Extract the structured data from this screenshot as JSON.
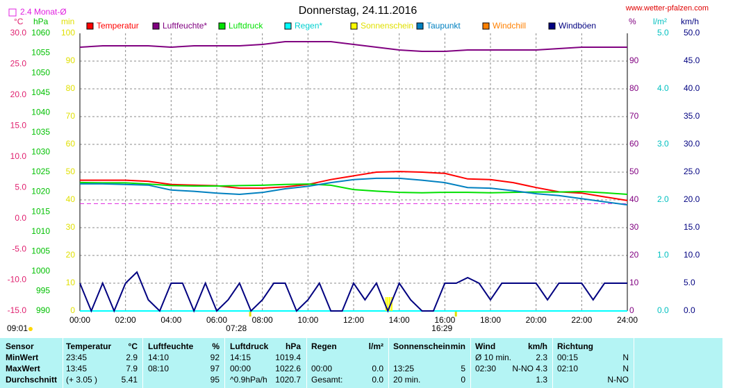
{
  "chart_data": {
    "type": "line",
    "title": "Donnerstag, 24.11.2016",
    "source": "www.wetter-pfalzen.com",
    "month_avg": {
      "label": "2.4 Monat-Ø",
      "value": 2.4,
      "color": "#e020e0"
    },
    "day_length": "09:01",
    "sunrise": {
      "value": 7.4667,
      "label": "07:28"
    },
    "sunset": {
      "value": 16.4833,
      "label": "16:29"
    },
    "grid": true,
    "xlim": [
      0,
      24
    ],
    "xticks": [
      {
        "value": 0,
        "label": "00:00"
      },
      {
        "value": 2,
        "label": "02:00"
      },
      {
        "value": 4,
        "label": "04:00"
      },
      {
        "value": 6,
        "label": "06:00"
      },
      {
        "value": 8,
        "label": "08:00"
      },
      {
        "value": 10,
        "label": "10:00"
      },
      {
        "value": 12,
        "label": "12:00"
      },
      {
        "value": 14,
        "label": "14:00"
      },
      {
        "value": 16,
        "label": "16:00"
      },
      {
        "value": 18,
        "label": "18:00"
      },
      {
        "value": 20,
        "label": "20:00"
      },
      {
        "value": 22,
        "label": "22:00"
      },
      {
        "value": 24,
        "label": "24:00"
      }
    ],
    "axes": [
      {
        "label": "°C",
        "color": "#e0206f",
        "lim": [
          -15,
          30
        ],
        "ticks": [
          {
            "value": -15,
            "label": "-15.0"
          },
          {
            "value": -10,
            "label": "-10.0"
          },
          {
            "value": -5,
            "label": "-5.0"
          },
          {
            "value": 0,
            "label": "0.0"
          },
          {
            "value": 5,
            "label": "5.0"
          },
          {
            "value": 10,
            "label": "10.0"
          },
          {
            "value": 15,
            "label": "15.0"
          },
          {
            "value": 20,
            "label": "20.0"
          },
          {
            "value": 25,
            "label": "25.0"
          },
          {
            "value": 30,
            "label": "30.0"
          }
        ]
      },
      {
        "label": "hPa",
        "color": "#00c000",
        "lim": [
          990,
          1060
        ],
        "ticks": [
          990,
          995,
          1000,
          1005,
          1010,
          1015,
          1020,
          1025,
          1030,
          1035,
          1040,
          1045,
          1050,
          1055,
          1060
        ]
      },
      {
        "label": "min",
        "color": "#e0e000",
        "lim": [
          0,
          100
        ],
        "ticks": [
          0,
          10,
          20,
          30,
          40,
          50,
          60,
          70,
          80,
          90,
          100
        ]
      },
      {
        "label": "%",
        "color": "#800080",
        "lim": [
          0,
          100
        ],
        "ticks": [
          0,
          10,
          20,
          30,
          40,
          50,
          60,
          70,
          80,
          90
        ]
      },
      {
        "label": "l/m²",
        "color": "#00c0c0",
        "lim": [
          0,
          5
        ],
        "ticks": [
          {
            "value": 0,
            "label": "0.0"
          },
          {
            "value": 1,
            "label": "1.0"
          },
          {
            "value": 2,
            "label": "2.0"
          },
          {
            "value": 3,
            "label": "3.0"
          },
          {
            "value": 4,
            "label": "4.0"
          },
          {
            "value": 5,
            "label": "5.0"
          }
        ]
      },
      {
        "label": "km/h",
        "color": "#000080",
        "lim": [
          0,
          50
        ],
        "ticks": [
          {
            "value": 0,
            "label": "0.0"
          },
          {
            "value": 5,
            "label": "5.0"
          },
          {
            "value": 10,
            "label": "10.0"
          },
          {
            "value": 15,
            "label": "15.0"
          },
          {
            "value": 20,
            "label": "20.0"
          },
          {
            "value": 25,
            "label": "25.0"
          },
          {
            "value": 30,
            "label": "30.0"
          },
          {
            "value": 35,
            "label": "35.0"
          },
          {
            "value": 40,
            "label": "40.0"
          },
          {
            "value": 45,
            "label": "45.0"
          },
          {
            "value": 50,
            "label": "50.0"
          }
        ]
      }
    ],
    "x": [
      0,
      1,
      2,
      3,
      4,
      5,
      6,
      7,
      8,
      9,
      10,
      11,
      12,
      13,
      14,
      15,
      16,
      17,
      18,
      19,
      20,
      21,
      22,
      23,
      24
    ],
    "series": [
      {
        "name": "Temperatur",
        "color": "#ff0000",
        "axis": 0,
        "values": [
          6.2,
          6.2,
          6.2,
          6.0,
          5.5,
          5.4,
          5.3,
          4.9,
          4.9,
          5.1,
          5.5,
          6.3,
          6.9,
          7.5,
          7.6,
          7.5,
          7.3,
          6.4,
          6.3,
          5.8,
          5.0,
          4.3,
          4.1,
          3.5,
          2.9
        ]
      },
      {
        "name": "Luftfeuchte*",
        "color": "#800080",
        "axis": 3,
        "values": [
          95,
          95.5,
          95.5,
          95.5,
          95,
          95.5,
          95.5,
          95.5,
          96,
          97,
          97,
          97,
          96,
          95,
          94,
          93.5,
          93.5,
          94,
          94,
          94,
          94,
          94.5,
          95,
          95,
          95
        ]
      },
      {
        "name": "Luftdruck",
        "color": "#00e000",
        "axis": 1,
        "values": [
          1022.4,
          1022.3,
          1022.3,
          1022.0,
          1021.6,
          1021.5,
          1021.5,
          1021.6,
          1021.7,
          1021.9,
          1022.0,
          1021.7,
          1020.6,
          1020.2,
          1019.9,
          1019.8,
          1019.9,
          1019.9,
          1019.8,
          1019.9,
          1020.0,
          1020.0,
          1020.1,
          1019.8,
          1019.4
        ]
      },
      {
        "name": "Regen*",
        "color": "#00ffff",
        "axis": 4,
        "values": [
          0,
          0,
          0,
          0,
          0,
          0,
          0,
          0,
          0,
          0,
          0,
          0,
          0,
          0,
          0,
          0,
          0,
          0,
          0,
          0,
          0,
          0,
          0,
          0,
          0
        ]
      },
      {
        "name": "Sonnenschein",
        "color": "#ffff00",
        "axis": 2,
        "type": "bar",
        "x": [
          13.42,
          13.5,
          13.58,
          13.67
        ],
        "values": [
          5,
          5,
          5,
          5
        ]
      },
      {
        "name": "Taupunkt",
        "color": "#0080c0",
        "axis": 0,
        "values": [
          5.6,
          5.6,
          5.5,
          5.4,
          4.6,
          4.4,
          4.1,
          3.9,
          4.2,
          4.8,
          5.2,
          5.8,
          6.3,
          6.5,
          6.5,
          6.2,
          5.8,
          5.0,
          4.9,
          4.5,
          4.0,
          3.7,
          3.2,
          2.7,
          2.2
        ]
      },
      {
        "name": "Windchill",
        "color": "#ff8000",
        "axis": 0
      },
      {
        "name": "Windböen",
        "color": "#000080",
        "axis": 5,
        "x": [
          0,
          0.5,
          1,
          1.5,
          2,
          2.5,
          3,
          3.5,
          4,
          4.5,
          5,
          5.5,
          6,
          6.5,
          7,
          7.5,
          8,
          8.5,
          9,
          9.5,
          10,
          10.5,
          11,
          11.5,
          12,
          12.5,
          13,
          13.5,
          14,
          14.5,
          15,
          15.5,
          16,
          16.5,
          17,
          17.5,
          18,
          18.5,
          19,
          19.5,
          20,
          20.5,
          21,
          21.5,
          22,
          22.5,
          23,
          23.5,
          24
        ],
        "values": [
          5,
          0,
          5,
          0,
          5,
          7,
          2,
          0,
          5,
          5,
          0,
          5,
          0,
          2,
          5,
          0,
          2,
          5,
          5,
          0,
          2,
          5,
          0,
          0,
          5,
          2,
          5,
          0,
          5,
          2,
          0,
          0,
          5,
          5,
          6,
          5,
          2,
          5,
          5,
          5,
          5,
          2,
          5,
          5,
          5,
          2,
          5,
          5,
          5
        ]
      }
    ]
  },
  "table": {
    "rows": [
      [
        "Sensor",
        "Temperatur",
        "°C",
        "Luftfeuchte",
        "%",
        "Luftdruck",
        "hPa",
        "Regen",
        "l/m²",
        "Sonnenschein",
        "min",
        "Wind",
        "km/h",
        "Richtung",
        null
      ],
      [
        "MinWert",
        "23:45",
        "2.9",
        "14:10",
        "92",
        "14:15",
        "1019.4",
        null,
        null,
        null,
        null,
        "Ø 10 min.",
        "2.3",
        "00:15",
        "N"
      ],
      [
        "MaxWert",
        "13:45",
        "7.9",
        "08:10",
        "97",
        "00:00",
        "1022.6",
        "00:00",
        "0.0",
        "13:25",
        "5",
        "02:30",
        "N-NO 4.3",
        "02:10",
        "N"
      ],
      [
        "Durchschnitt",
        "(+ 3.05 )",
        "5.41",
        null,
        "95",
        "^0.9hPa/h",
        "1020.7",
        "Gesamt:",
        "0.0",
        "20 min.",
        "0",
        null,
        "1.3",
        null,
        "N-NO"
      ]
    ]
  }
}
